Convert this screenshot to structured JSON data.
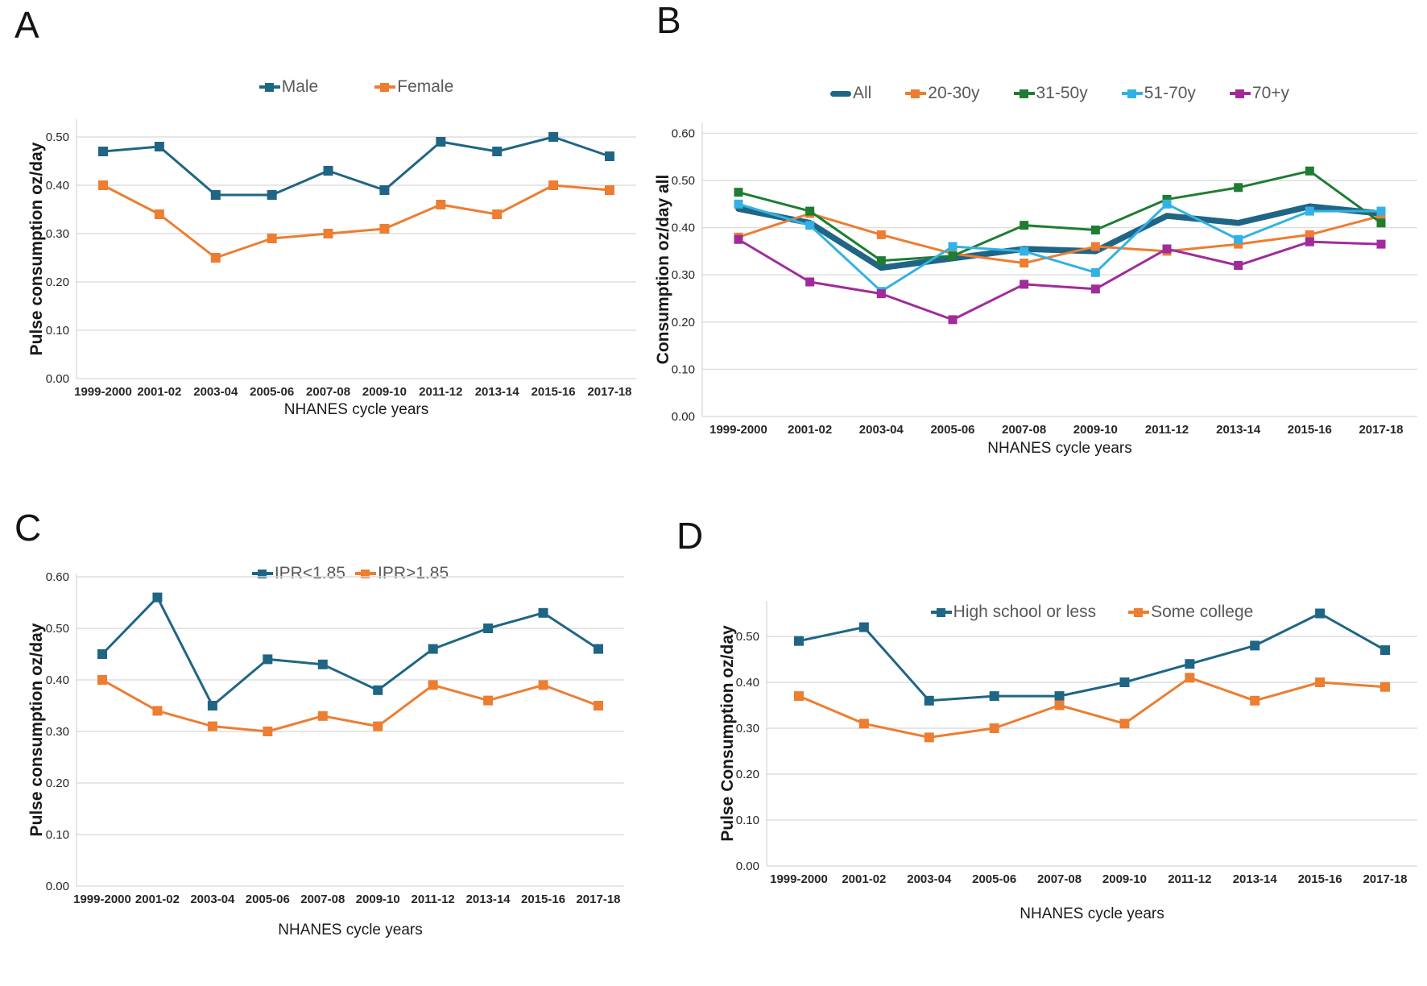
{
  "figure_background": "#ffffff",
  "shared": {
    "x_axis_title": "NHANES cycle years",
    "categories": [
      "1999-2000",
      "2001-02",
      "2003-04",
      "2005-06",
      "2007-08",
      "2009-10",
      "2011-12",
      "2013-14",
      "2015-16",
      "2017-18"
    ],
    "grid_color": "#dddddd",
    "legend_text_color": "#595959",
    "tick_text_color": "#262626"
  },
  "chart_data": [
    {
      "type": "line",
      "panel": "A",
      "title": "",
      "xlabel": "NHANES cycle years",
      "ylabel": "Pulse consumption oz/day",
      "categories": [
        "1999-2000",
        "2001-02",
        "2003-04",
        "2005-06",
        "2007-08",
        "2009-10",
        "2011-12",
        "2013-14",
        "2015-16",
        "2017-18"
      ],
      "ylim": [
        0,
        0.54
      ],
      "yticks": [
        0.0,
        0.1,
        0.2,
        0.3,
        0.4,
        0.5
      ],
      "grid": true,
      "legend_position": "top",
      "series": [
        {
          "name": "Male",
          "color": "#1f6585",
          "marker": "square",
          "values": [
            0.47,
            0.48,
            0.38,
            0.38,
            0.43,
            0.39,
            0.49,
            0.47,
            0.5,
            0.46
          ]
        },
        {
          "name": "Female",
          "color": "#ed7d31",
          "marker": "square",
          "values": [
            0.4,
            0.34,
            0.25,
            0.29,
            0.3,
            0.31,
            0.36,
            0.34,
            0.4,
            0.39
          ]
        }
      ]
    },
    {
      "type": "line",
      "panel": "B",
      "title": "",
      "xlabel": "NHANES cycle years",
      "ylabel": "Consumption oz/day all",
      "categories": [
        "1999-2000",
        "2001-02",
        "2003-04",
        "2005-06",
        "2007-08",
        "2009-10",
        "2011-12",
        "2013-14",
        "2015-16",
        "2017-18"
      ],
      "ylim": [
        0,
        0.62
      ],
      "yticks": [
        0.0,
        0.1,
        0.2,
        0.3,
        0.4,
        0.5,
        0.6
      ],
      "grid": true,
      "legend_position": "top",
      "series": [
        {
          "name": "All",
          "color": "#1f6585",
          "marker": "none",
          "thick": true,
          "values": [
            0.44,
            0.41,
            0.315,
            0.335,
            0.355,
            0.35,
            0.425,
            0.41,
            0.445,
            0.43
          ]
        },
        {
          "name": "20-30y",
          "color": "#ed7d31",
          "marker": "square",
          "values": [
            0.38,
            0.43,
            0.385,
            0.345,
            0.325,
            0.36,
            0.35,
            0.365,
            0.385,
            0.425
          ]
        },
        {
          "name": "31-50y",
          "color": "#1e7d32",
          "marker": "square",
          "values": [
            0.475,
            0.435,
            0.33,
            0.34,
            0.405,
            0.395,
            0.46,
            0.485,
            0.52,
            0.41
          ]
        },
        {
          "name": "51-70y",
          "color": "#33b1e4",
          "marker": "square",
          "values": [
            0.45,
            0.405,
            0.265,
            0.36,
            0.35,
            0.305,
            0.45,
            0.375,
            0.435,
            0.435
          ]
        },
        {
          "name": "70+y",
          "color": "#a12b9b",
          "marker": "square",
          "values": [
            0.375,
            0.285,
            0.26,
            0.205,
            0.28,
            0.27,
            0.355,
            0.32,
            0.37,
            0.365
          ]
        }
      ]
    },
    {
      "type": "line",
      "panel": "C",
      "title": "",
      "xlabel": "NHANES cycle years",
      "ylabel": "Pulse consumption oz/day",
      "categories": [
        "1999-2000",
        "2001-02",
        "2003-04",
        "2005-06",
        "2007-08",
        "2009-10",
        "2011-12",
        "2013-14",
        "2015-16",
        "2017-18"
      ],
      "ylim": [
        0,
        0.62
      ],
      "yticks": [
        0.0,
        0.1,
        0.2,
        0.3,
        0.4,
        0.5,
        0.6
      ],
      "grid": true,
      "legend_position": "top",
      "series": [
        {
          "name": "IPR<1.85",
          "color": "#1f6585",
          "marker": "square",
          "values": [
            0.45,
            0.56,
            0.35,
            0.44,
            0.43,
            0.38,
            0.46,
            0.5,
            0.53,
            0.46
          ]
        },
        {
          "name": "IPR>1.85",
          "color": "#ed7d31",
          "marker": "square",
          "values": [
            0.4,
            0.34,
            0.31,
            0.3,
            0.33,
            0.31,
            0.39,
            0.36,
            0.39,
            0.35
          ]
        }
      ]
    },
    {
      "type": "line",
      "panel": "D",
      "title": "",
      "xlabel": "NHANES cycle years",
      "ylabel": "Pulse Consumption oz/day",
      "categories": [
        "1999-2000",
        "2001-02",
        "2003-04",
        "2005-06",
        "2007-08",
        "2009-10",
        "2011-12",
        "2013-14",
        "2015-16",
        "2017-18"
      ],
      "ylim": [
        0,
        0.58
      ],
      "yticks": [
        0.0,
        0.1,
        0.2,
        0.3,
        0.4,
        0.5
      ],
      "grid": true,
      "legend_position": "top",
      "series": [
        {
          "name": "High school or less",
          "color": "#1f6585",
          "marker": "square",
          "values": [
            0.49,
            0.52,
            0.36,
            0.37,
            0.37,
            0.4,
            0.44,
            0.48,
            0.55,
            0.47
          ]
        },
        {
          "name": "Some college",
          "color": "#ed7d31",
          "marker": "square",
          "values": [
            0.37,
            0.31,
            0.28,
            0.3,
            0.35,
            0.31,
            0.41,
            0.36,
            0.4,
            0.39
          ]
        }
      ]
    }
  ]
}
